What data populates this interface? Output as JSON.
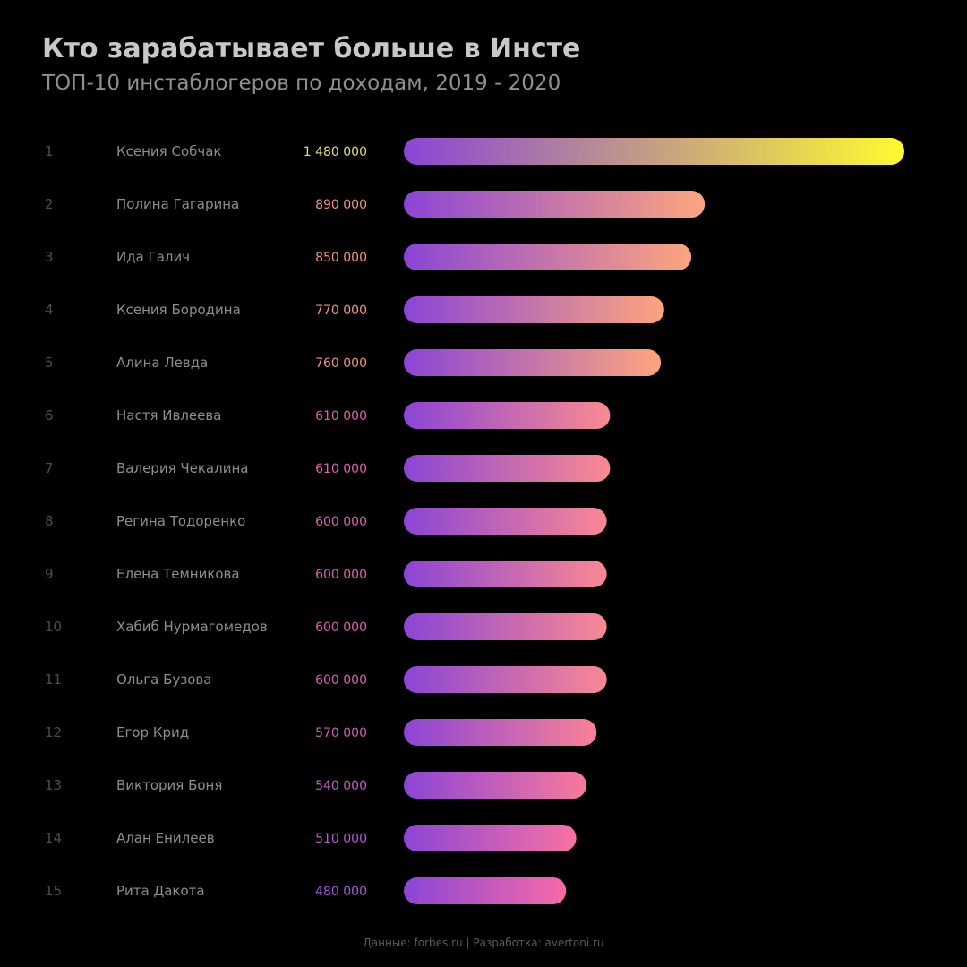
{
  "header": {
    "title": "Кто зарабатывает больше в Инсте",
    "subtitle": "ТОП-10 инстаблогеров по доходам, 2019 - 2020"
  },
  "footer": {
    "credits": "Данные: forbes.ru | Разработка: avertoni.ru"
  },
  "chart_data": {
    "type": "bar",
    "orientation": "horizontal",
    "title": "Кто зарабатывает больше в Инсте",
    "subtitle": "ТОП-10 инстаблогеров по доходам, 2019 - 2020",
    "xlim": [
      0,
      1480000
    ],
    "grid": false,
    "legend": "none",
    "colors": {
      "bar_start": "#8b45d6",
      "bar_end_low": "#f76aa8",
      "bar_end_mid": "#fda57e",
      "bar_end_high": "#fff930"
    },
    "ranks": [
      "1",
      "2",
      "3",
      "4",
      "5",
      "6",
      "7",
      "8",
      "9",
      "10",
      "11",
      "12",
      "13",
      "14",
      "15"
    ],
    "categories": [
      "Ксения Собчак",
      "Полина Гагарина",
      "Ида Галич",
      "Ксения Бородина",
      "Алина Левда",
      "Настя Ивлеева",
      "Валерия Чекалина",
      "Регина Тодоренко",
      "Елена Темникова",
      "Хабиб Нурмагомедов",
      "Ольга Бузова",
      "Егор Крид",
      "Виктория Боня",
      "Алан Енилеев",
      "Рита Дакота"
    ],
    "values": [
      1480000,
      890000,
      850000,
      770000,
      760000,
      610000,
      610000,
      600000,
      600000,
      600000,
      600000,
      570000,
      540000,
      510000,
      480000
    ],
    "value_labels": [
      "1 480 000",
      "890 000",
      "850 000",
      "770 000",
      "760 000",
      "610 000",
      "610 000",
      "600 000",
      "600 000",
      "600 000",
      "600 000",
      "570 000",
      "540 000",
      "510 000",
      "480 000"
    ]
  }
}
